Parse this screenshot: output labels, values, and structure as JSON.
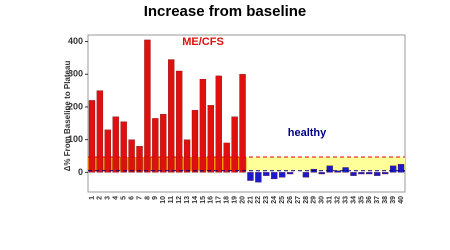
{
  "chart_data": {
    "type": "bar",
    "title": "Increase from baseline",
    "ylabel": "Δ% From Baseline to Plateau",
    "categories": [
      "1",
      "2",
      "3",
      "4",
      "5",
      "6",
      "7",
      "8",
      "9",
      "10",
      "11",
      "12",
      "13",
      "14",
      "15",
      "16",
      "17",
      "18",
      "19",
      "20",
      "21",
      "22",
      "23",
      "24",
      "25",
      "26",
      "27",
      "28",
      "29",
      "30",
      "31",
      "32",
      "33",
      "34",
      "35",
      "36",
      "37",
      "38",
      "39",
      "40"
    ],
    "series": [
      {
        "name": "ME/CFS",
        "color": "#e01010",
        "values": [
          220,
          250,
          130,
          170,
          155,
          100,
          80,
          405,
          165,
          178,
          345,
          310,
          100,
          190,
          285,
          205,
          295,
          90,
          170,
          300,
          null,
          null,
          null,
          null,
          null,
          null,
          null,
          null,
          null,
          null,
          null,
          null,
          null,
          null,
          null,
          null,
          null,
          null,
          null,
          null
        ]
      },
      {
        "name": "healthy",
        "color": "#1a1acc",
        "values": [
          null,
          null,
          null,
          null,
          null,
          null,
          null,
          null,
          null,
          null,
          null,
          null,
          null,
          null,
          null,
          null,
          null,
          null,
          null,
          null,
          -25,
          -30,
          -10,
          -20,
          -15,
          -5,
          0,
          -15,
          10,
          -5,
          20,
          5,
          15,
          -10,
          -5,
          -5,
          -10,
          -5,
          20,
          25
        ]
      }
    ],
    "reference_lines": [
      {
        "value": 47,
        "color": "#e00000"
      },
      {
        "value": 5,
        "color": "#000080"
      }
    ],
    "ylim": [
      -60,
      420
    ],
    "yticks": [
      0,
      100,
      200,
      300,
      400
    ]
  }
}
